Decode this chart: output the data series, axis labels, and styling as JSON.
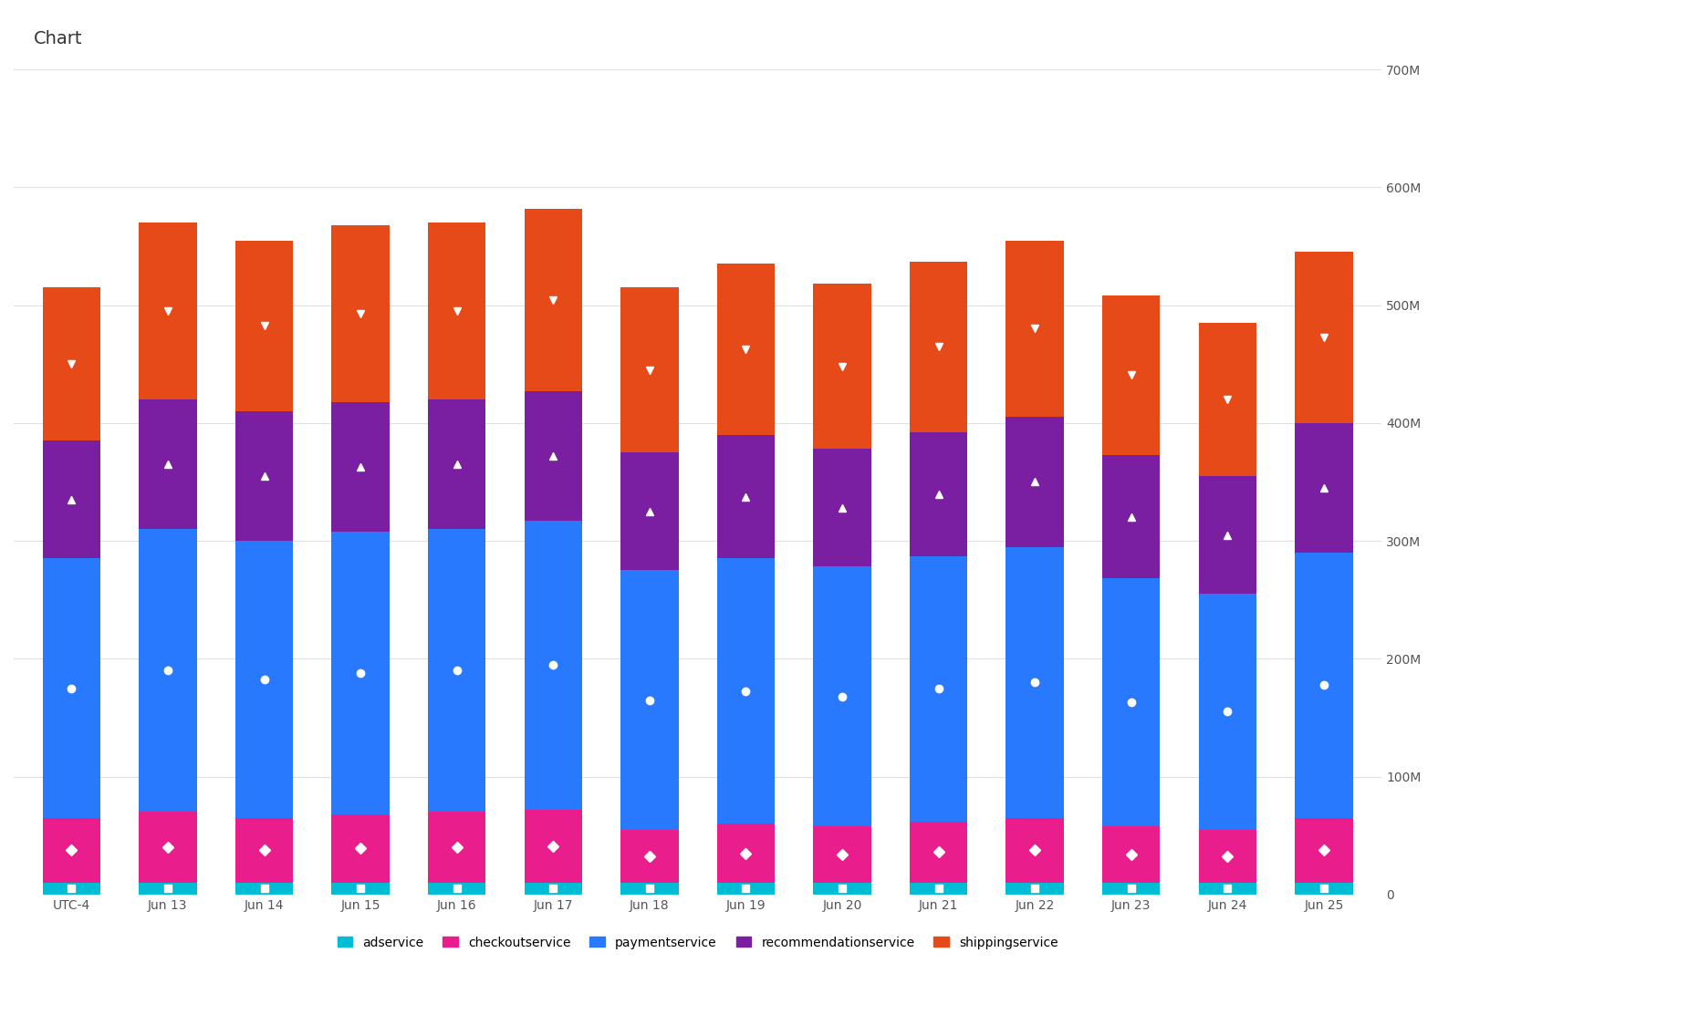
{
  "title": "Chart",
  "categories": [
    "UTC-4",
    "Jun 13",
    "Jun 14",
    "Jun 15",
    "Jun 16",
    "Jun 17",
    "Jun 18",
    "Jun 19",
    "Jun 20",
    "Jun 21",
    "Jun 22",
    "Jun 23",
    "Jun 24",
    "Jun 25"
  ],
  "series": [
    {
      "name": "adservice",
      "color": "#00BCD4",
      "values": [
        10,
        10,
        10,
        10,
        10,
        10,
        10,
        10,
        10,
        10,
        10,
        10,
        10,
        10
      ],
      "marker": "s"
    },
    {
      "name": "checkoutservice",
      "color": "#E91E8C",
      "values": [
        55,
        60,
        55,
        58,
        60,
        62,
        45,
        50,
        48,
        52,
        55,
        48,
        45,
        55
      ],
      "marker": "D"
    },
    {
      "name": "paymentservice",
      "color": "#2979FF",
      "values": [
        220,
        240,
        235,
        240,
        240,
        245,
        220,
        225,
        220,
        225,
        230,
        210,
        200,
        225
      ],
      "marker": "o"
    },
    {
      "name": "recommendationservice",
      "color": "#7B1FA2",
      "values": [
        100,
        110,
        110,
        110,
        110,
        110,
        100,
        105,
        100,
        105,
        110,
        105,
        100,
        110
      ],
      "marker": "^"
    },
    {
      "name": "shippingservice",
      "color": "#E64A19",
      "values": [
        130,
        150,
        145,
        150,
        150,
        155,
        140,
        145,
        140,
        145,
        150,
        135,
        130,
        145
      ],
      "marker": "v"
    }
  ],
  "ylim": [
    0,
    700
  ],
  "yticks": [
    0,
    100,
    200,
    300,
    400,
    500,
    600,
    700
  ],
  "ytick_labels": [
    "0",
    "100M",
    "200M",
    "300M",
    "400M",
    "500M",
    "600M",
    "700M"
  ],
  "background_color": "#FFFFFF",
  "grid_color": "#E0E0E0",
  "bar_width": 0.6,
  "figsize": [
    18.5,
    11.13
  ],
  "dpi": 100
}
